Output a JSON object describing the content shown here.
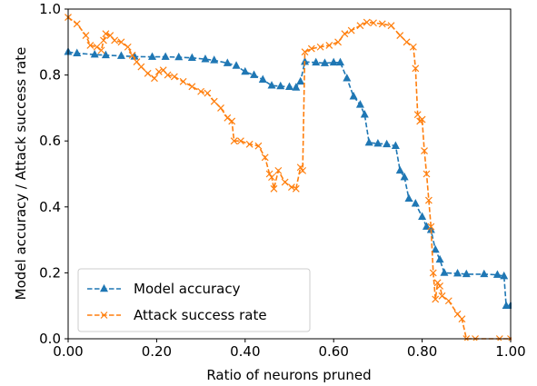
{
  "chart_data": {
    "type": "line",
    "xlabel": "Ratio of neurons pruned",
    "ylabel": "Model accuracy / Attack success rate",
    "xlim": [
      0,
      1.0
    ],
    "ylim": [
      0,
      1.0
    ],
    "xticks": [
      "0.00",
      "0.20",
      "0.40",
      "0.60",
      "0.80",
      "1.00"
    ],
    "yticks": [
      "0.0",
      "0.2",
      "0.4",
      "0.6",
      "0.8",
      "1.0"
    ],
    "legend_position": "lower-left",
    "grid": false,
    "series": [
      {
        "name": "Model accuracy",
        "color": "#1f77b4",
        "marker": "triangle-up",
        "linestyle": "dashed",
        "points": [
          [
            0.0,
            0.87
          ],
          [
            0.02,
            0.866
          ],
          [
            0.06,
            0.862
          ],
          [
            0.085,
            0.86
          ],
          [
            0.12,
            0.858
          ],
          [
            0.15,
            0.856
          ],
          [
            0.19,
            0.855
          ],
          [
            0.22,
            0.855
          ],
          [
            0.25,
            0.854
          ],
          [
            0.28,
            0.852
          ],
          [
            0.31,
            0.848
          ],
          [
            0.33,
            0.845
          ],
          [
            0.36,
            0.836
          ],
          [
            0.38,
            0.828
          ],
          [
            0.4,
            0.81
          ],
          [
            0.42,
            0.8
          ],
          [
            0.44,
            0.786
          ],
          [
            0.46,
            0.768
          ],
          [
            0.48,
            0.766
          ],
          [
            0.5,
            0.764
          ],
          [
            0.515,
            0.762
          ],
          [
            0.525,
            0.78
          ],
          [
            0.535,
            0.84
          ],
          [
            0.56,
            0.838
          ],
          [
            0.58,
            0.836
          ],
          [
            0.6,
            0.838
          ],
          [
            0.615,
            0.838
          ],
          [
            0.63,
            0.79
          ],
          [
            0.645,
            0.735
          ],
          [
            0.66,
            0.71
          ],
          [
            0.67,
            0.68
          ],
          [
            0.68,
            0.595
          ],
          [
            0.7,
            0.592
          ],
          [
            0.72,
            0.59
          ],
          [
            0.74,
            0.585
          ],
          [
            0.75,
            0.51
          ],
          [
            0.76,
            0.49
          ],
          [
            0.77,
            0.425
          ],
          [
            0.785,
            0.41
          ],
          [
            0.8,
            0.37
          ],
          [
            0.81,
            0.34
          ],
          [
            0.82,
            0.33
          ],
          [
            0.83,
            0.27
          ],
          [
            0.84,
            0.24
          ],
          [
            0.85,
            0.2
          ],
          [
            0.88,
            0.198
          ],
          [
            0.9,
            0.196
          ],
          [
            0.94,
            0.196
          ],
          [
            0.97,
            0.194
          ],
          [
            0.985,
            0.19
          ],
          [
            0.99,
            0.1
          ],
          [
            1.0,
            0.1
          ]
        ]
      },
      {
        "name": "Attack success rate",
        "color": "#ff7f0e",
        "marker": "x",
        "linestyle": "dashed",
        "points": [
          [
            0.0,
            0.975
          ],
          [
            0.02,
            0.955
          ],
          [
            0.04,
            0.92
          ],
          [
            0.05,
            0.89
          ],
          [
            0.065,
            0.885
          ],
          [
            0.075,
            0.875
          ],
          [
            0.08,
            0.905
          ],
          [
            0.085,
            0.925
          ],
          [
            0.095,
            0.92
          ],
          [
            0.105,
            0.905
          ],
          [
            0.12,
            0.9
          ],
          [
            0.135,
            0.885
          ],
          [
            0.145,
            0.86
          ],
          [
            0.155,
            0.84
          ],
          [
            0.165,
            0.825
          ],
          [
            0.18,
            0.805
          ],
          [
            0.195,
            0.79
          ],
          [
            0.205,
            0.81
          ],
          [
            0.215,
            0.815
          ],
          [
            0.225,
            0.8
          ],
          [
            0.24,
            0.795
          ],
          [
            0.26,
            0.78
          ],
          [
            0.28,
            0.765
          ],
          [
            0.3,
            0.75
          ],
          [
            0.315,
            0.745
          ],
          [
            0.33,
            0.72
          ],
          [
            0.345,
            0.7
          ],
          [
            0.36,
            0.67
          ],
          [
            0.37,
            0.66
          ],
          [
            0.375,
            0.6
          ],
          [
            0.39,
            0.6
          ],
          [
            0.41,
            0.59
          ],
          [
            0.43,
            0.585
          ],
          [
            0.445,
            0.55
          ],
          [
            0.455,
            0.5
          ],
          [
            0.46,
            0.49
          ],
          [
            0.465,
            0.455
          ],
          [
            0.475,
            0.51
          ],
          [
            0.49,
            0.475
          ],
          [
            0.505,
            0.46
          ],
          [
            0.515,
            0.455
          ],
          [
            0.525,
            0.52
          ],
          [
            0.53,
            0.51
          ],
          [
            0.535,
            0.87
          ],
          [
            0.55,
            0.88
          ],
          [
            0.57,
            0.885
          ],
          [
            0.59,
            0.89
          ],
          [
            0.61,
            0.9
          ],
          [
            0.625,
            0.925
          ],
          [
            0.64,
            0.935
          ],
          [
            0.66,
            0.95
          ],
          [
            0.675,
            0.96
          ],
          [
            0.69,
            0.958
          ],
          [
            0.71,
            0.955
          ],
          [
            0.73,
            0.95
          ],
          [
            0.75,
            0.92
          ],
          [
            0.765,
            0.9
          ],
          [
            0.78,
            0.885
          ],
          [
            0.785,
            0.82
          ],
          [
            0.79,
            0.68
          ],
          [
            0.795,
            0.66
          ],
          [
            0.8,
            0.665
          ],
          [
            0.805,
            0.57
          ],
          [
            0.81,
            0.5
          ],
          [
            0.815,
            0.42
          ],
          [
            0.82,
            0.34
          ],
          [
            0.825,
            0.2
          ],
          [
            0.83,
            0.12
          ],
          [
            0.835,
            0.17
          ],
          [
            0.84,
            0.16
          ],
          [
            0.845,
            0.13
          ],
          [
            0.86,
            0.115
          ],
          [
            0.88,
            0.075
          ],
          [
            0.89,
            0.06
          ],
          [
            0.9,
            0.0
          ],
          [
            0.92,
            0.0
          ],
          [
            0.975,
            0.0
          ],
          [
            1.0,
            0.0
          ]
        ]
      }
    ]
  }
}
